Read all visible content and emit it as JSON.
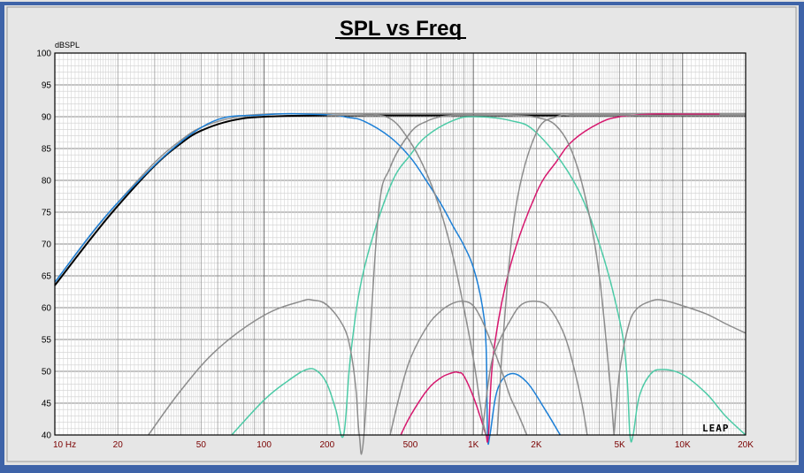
{
  "chart_data": {
    "type": "line",
    "title": "SPL vs Freq",
    "ylabel": "dBSPL",
    "xscale": "log",
    "xlim": [
      10,
      20000
    ],
    "ylim": [
      40,
      100
    ],
    "grid": true,
    "ytick_labels": [
      "100",
      "95",
      "90",
      "85",
      "80",
      "75",
      "70",
      "65",
      "60",
      "55",
      "50",
      "45",
      "40"
    ],
    "xtick_labels": [
      {
        "value": 10,
        "label": "10  Hz"
      },
      {
        "value": 20,
        "label": "20"
      },
      {
        "value": 50,
        "label": "50"
      },
      {
        "value": 100,
        "label": "100"
      },
      {
        "value": 200,
        "label": "200"
      },
      {
        "value": 500,
        "label": "500"
      },
      {
        "value": 1000,
        "label": "1K"
      },
      {
        "value": 2000,
        "label": "2K"
      },
      {
        "value": 5000,
        "label": "5K"
      },
      {
        "value": 10000,
        "label": "10K"
      },
      {
        "value": 20000,
        "label": "20K"
      }
    ],
    "logo": "LEAP",
    "series": [
      {
        "color": "#000000",
        "width": 2,
        "x": [
          10,
          15,
          20,
          30,
          40,
          50,
          70,
          100,
          200,
          500,
          1000,
          2000,
          5000,
          10000,
          20000
        ],
        "y": [
          63.5,
          71,
          76,
          82.3,
          85.8,
          87.8,
          89.4,
          90,
          90.2,
          90.2,
          90.2,
          90.2,
          90.2,
          90.2,
          90.2
        ]
      },
      {
        "color": "#909090",
        "width": 1.5,
        "x": [
          10,
          15,
          20,
          30,
          40,
          50,
          70,
          100,
          200,
          500,
          1000,
          2000,
          5000,
          10000,
          20000
        ],
        "y": [
          64,
          71.6,
          76.5,
          82.8,
          86.3,
          88.3,
          89.8,
          90.4,
          90.5,
          90.5,
          90.5,
          90.5,
          90.5,
          90.5,
          90.5
        ]
      },
      {
        "color": "#1c7fd6",
        "width": 1.5,
        "x": [
          10,
          20,
          50,
          100,
          200,
          250,
          300,
          400,
          500,
          600,
          700,
          800,
          900,
          1000,
          1100,
          1150,
          1170,
          1200,
          1300,
          1500,
          1800,
          2200,
          2600
        ],
        "y": [
          64,
          76.5,
          88.3,
          90.3,
          90.3,
          89.9,
          89.3,
          86.8,
          83.6,
          79.8,
          76.3,
          72.8,
          69.8,
          66.3,
          60.5,
          54,
          40,
          40,
          47,
          49.6,
          48.3,
          44,
          40
        ]
      },
      {
        "color": "#d6186e",
        "width": 1.5,
        "x": [
          450,
          500,
          600,
          700,
          800,
          850,
          900,
          1000,
          1100,
          1150,
          1180,
          1250,
          1500,
          2000,
          2500,
          3000,
          4000,
          5000,
          7000,
          10000,
          15000
        ],
        "y": [
          40,
          43,
          47,
          49,
          49.8,
          49.8,
          49.3,
          46,
          42,
          40,
          40,
          53,
          66.5,
          78,
          83,
          86.3,
          89,
          90,
          90.4,
          90.4,
          90.4
        ]
      },
      {
        "color": "#4ccaa6",
        "width": 1.5,
        "x": [
          70,
          100,
          130,
          160,
          180,
          200,
          220,
          240,
          260,
          300,
          400,
          500,
          600,
          800,
          1000,
          1500,
          2000,
          3000,
          4000,
          5000,
          5400,
          5600,
          5800,
          6200,
          7000,
          8000,
          10000,
          13000,
          16000,
          20000
        ],
        "y": [
          40,
          45.5,
          48.5,
          50.3,
          50,
          48,
          44,
          40,
          53,
          66,
          79,
          84,
          87,
          89.4,
          90,
          89.4,
          87.5,
          80,
          70,
          58,
          50,
          40,
          40,
          46,
          49.5,
          50.3,
          49.5,
          46.5,
          43,
          40
        ]
      },
      {
        "color": "#8c8c8c",
        "width": 1.5,
        "x": [
          28,
          40,
          60,
          100,
          150,
          170,
          200,
          240,
          260,
          275,
          285,
          300,
          350,
          400,
          500,
          600,
          700,
          800,
          1000
        ],
        "y": [
          40,
          47,
          53.5,
          58.8,
          61,
          61.2,
          60.4,
          57,
          53,
          47,
          40,
          40,
          74,
          82,
          87.5,
          89.3,
          90,
          90.2,
          90.2
        ]
      },
      {
        "color": "#8c8c8c",
        "width": 1.5,
        "x": [
          200,
          300,
          400,
          500,
          600,
          700,
          800,
          900,
          1000,
          1100,
          1150
        ],
        "y": [
          90.2,
          90.2,
          89.7,
          86,
          81,
          75,
          68,
          60,
          52,
          43,
          40
        ]
      },
      {
        "color": "#8c8c8c",
        "width": 1.5,
        "x": [
          400,
          450,
          500,
          600,
          700,
          800,
          900,
          1000,
          1100,
          1200,
          1300,
          1400,
          1500,
          1600,
          1700,
          1800
        ],
        "y": [
          40,
          47,
          52,
          57,
          59.5,
          60.7,
          61,
          60.3,
          58,
          55,
          52,
          49,
          46,
          44,
          42,
          40
        ]
      },
      {
        "color": "#8c8c8c",
        "width": 1.5,
        "x": [
          1100,
          1200,
          1300,
          1500,
          1700,
          2000,
          2300,
          2700,
          3000,
          3300,
          3500
        ],
        "y": [
          40,
          50,
          54,
          58,
          60.5,
          61,
          60,
          56,
          51,
          45,
          40
        ]
      },
      {
        "color": "#8c8c8c",
        "width": 1.5,
        "x": [
          1300,
          1400,
          1600,
          2000,
          2500,
          3000,
          4000,
          5000,
          6000,
          8000,
          10000,
          20000
        ],
        "y": [
          40,
          57,
          76,
          87.5,
          90,
          90.2,
          90.2,
          90.2,
          90.2,
          90.2,
          90.2,
          90.2
        ]
      },
      {
        "color": "#8c8c8c",
        "width": 1.5,
        "x": [
          1000,
          1500,
          2000,
          2500,
          3000,
          3500,
          4000,
          4500,
          4700
        ],
        "y": [
          90.2,
          90.2,
          89.9,
          88.5,
          84,
          76,
          65,
          48,
          40
        ]
      },
      {
        "color": "#8c8c8c",
        "width": 1.5,
        "x": [
          4700,
          5000,
          5500,
          6000,
          7000,
          8000,
          10000,
          13000,
          16000,
          20000
        ],
        "y": [
          40,
          50,
          57,
          59.7,
          61,
          61.2,
          60.3,
          59,
          57.5,
          56
        ]
      }
    ]
  }
}
